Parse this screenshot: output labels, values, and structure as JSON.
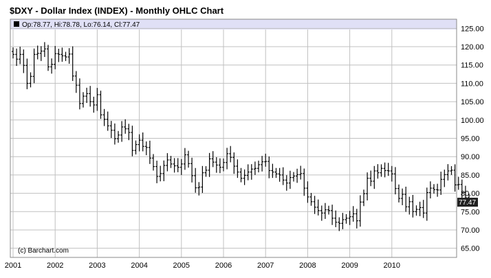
{
  "title": "$DXY - Dollar Index (INDEX) - Monthly OHLC Chart",
  "info_bar": "Op:78.77, Hi:78.78, Lo:76.14, Cl:77.47",
  "credit": "(c) Barchart.com",
  "colors": {
    "info_bar_bg": "#e0e0f6",
    "grid": "#c0c0c0",
    "bars": "#000000",
    "last_label_bg": "#222222",
    "last_label_text": "#ffffff"
  },
  "chart_data": {
    "type": "ohlc",
    "title": "$DXY - Dollar Index (INDEX) - Monthly OHLC Chart",
    "xlabel": "",
    "ylabel": "",
    "x_tick_labels": [
      "2001",
      "2002",
      "2003",
      "2004",
      "2005",
      "2006",
      "2007",
      "2008",
      "2009",
      "2010"
    ],
    "y_tick_labels": [
      "65.00",
      "70.00",
      "75.00",
      "80.00",
      "85.00",
      "90.00",
      "95.00",
      "100.00",
      "105.00",
      "110.00",
      "115.00",
      "120.00",
      "125.00"
    ],
    "ylim": [
      62.5,
      127.5
    ],
    "xlim": [
      "2001-01",
      "2011-01"
    ],
    "y_axis_side": "right",
    "grid": true,
    "last_value_label": "77.47",
    "close_series": [
      117.9,
      116.6,
      117.9,
      114.9,
      110.0,
      111.9,
      117.9,
      118.2,
      118.8,
      119.4,
      114.5,
      115.2,
      118.1,
      117.9,
      117.5,
      117.2,
      118.0,
      112.0,
      109.5,
      104.5,
      106.5,
      107.2,
      105.0,
      104.1,
      106.9,
      101.4,
      100.2,
      98.4,
      97.2,
      94.9,
      95.9,
      98.1,
      97.6,
      96.6,
      91.7,
      93.3,
      94.5,
      92.8,
      92.5,
      89.6,
      87.3,
      84.6,
      85.4,
      87.6,
      89.1,
      88.0,
      87.5,
      87.1,
      88.0,
      90.5,
      88.1,
      84.8,
      81.5,
      81.7,
      85.6,
      86.3,
      89.4,
      88.5,
      87.7,
      87.1,
      88.4,
      90.8,
      89.8,
      87.4,
      85.8,
      84.1,
      84.9,
      85.8,
      86.6,
      86.8,
      87.8,
      88.6,
      88.7,
      86.2,
      85.8,
      85.3,
      85.0,
      83.6,
      82.8,
      84.3,
      84.7,
      85.1,
      85.4,
      81.4,
      79.0,
      77.7,
      76.2,
      75.3,
      74.6,
      75.5,
      75.3,
      73.2,
      72.1,
      71.8,
      72.8,
      73.2,
      73.6,
      74.4,
      72.5,
      77.6,
      79.9,
      84.1,
      83.3,
      86.1,
      85.6,
      86.8,
      86.2,
      86.1,
      85.3,
      81.3,
      78.6,
      79.7,
      76.3,
      77.7,
      75.0,
      75.6,
      76.1,
      74.6,
      80.2,
      81.4,
      81.0,
      80.9,
      83.8,
      85.1,
      86.1,
      86.3,
      82.3,
      82.4,
      80.2,
      78.8,
      77.5
    ]
  }
}
